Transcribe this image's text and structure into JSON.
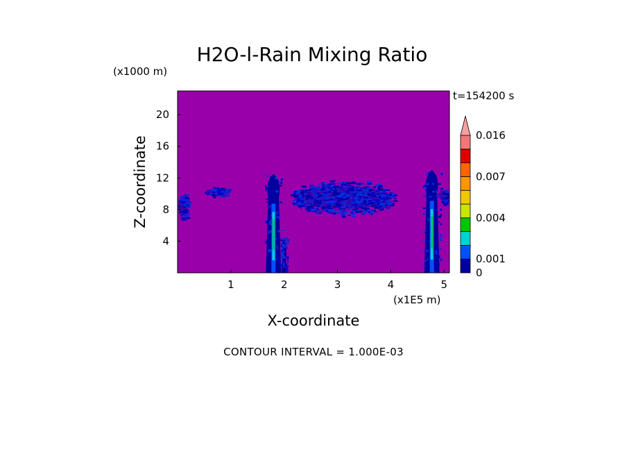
{
  "chart_data": {
    "type": "heatmap",
    "title": "H2O-l-Rain Mixing Ratio",
    "xlabel": "X-coordinate",
    "ylabel": "Z-coordinate",
    "x_unit": "(x1E5 m)",
    "y_unit": "(x1000 m)",
    "time_label": "t=154200 s",
    "xlim": [
      0,
      5.1
    ],
    "ylim": [
      0,
      23
    ],
    "x_ticks": [
      1,
      2,
      3,
      4,
      5
    ],
    "y_ticks": [
      4,
      8,
      12,
      16,
      20
    ],
    "colorbar": {
      "levels": [
        0,
        0.001,
        0.002,
        0.003,
        0.004,
        0.005,
        0.006,
        0.007,
        0.01,
        0.013,
        0.016
      ],
      "labels": [
        "0",
        "0.001",
        "0.004",
        "0.007",
        "0.016"
      ],
      "label_values": [
        0,
        0.001,
        0.004,
        0.007,
        0.016
      ],
      "colors": [
        "#00009e",
        "#0050ff",
        "#00d2d2",
        "#00c800",
        "#c8e600",
        "#f0c800",
        "#ff9600",
        "#ff6400",
        "#e00000",
        "#f07878",
        "#f5a0a0"
      ],
      "background_color": "#9a00aa",
      "extend": "max"
    },
    "features": [
      {
        "name": "left-edge rain",
        "x_range": [
          0,
          0.2
        ],
        "z_range": [
          6.5,
          10.5
        ],
        "max_value": 0.001
      },
      {
        "name": "upper band left",
        "x_range": [
          0.5,
          1.0
        ],
        "z_range": [
          9.5,
          11.0
        ],
        "max_value": 0.001
      },
      {
        "name": "convective column 1",
        "x_center": 1.8,
        "z_range": [
          0,
          12.5
        ],
        "max_value": 0.005
      },
      {
        "name": "secondary column",
        "x_center": 2.0,
        "z_range": [
          0,
          4.5
        ],
        "max_value": 0.001
      },
      {
        "name": "anvil band",
        "x_range": [
          2.1,
          4.1
        ],
        "z_range": [
          7.0,
          12.0
        ],
        "max_value": 0.001
      },
      {
        "name": "convective column 2",
        "x_center": 4.77,
        "z_range": [
          0,
          13.0
        ],
        "max_value": 0.005
      },
      {
        "name": "right-edge rain",
        "x_range": [
          4.9,
          5.1
        ],
        "z_range": [
          8.5,
          11.0
        ],
        "max_value": 0.001
      }
    ]
  },
  "footer": {
    "text": "CONTOUR INTERVAL = 1.000E-03"
  }
}
